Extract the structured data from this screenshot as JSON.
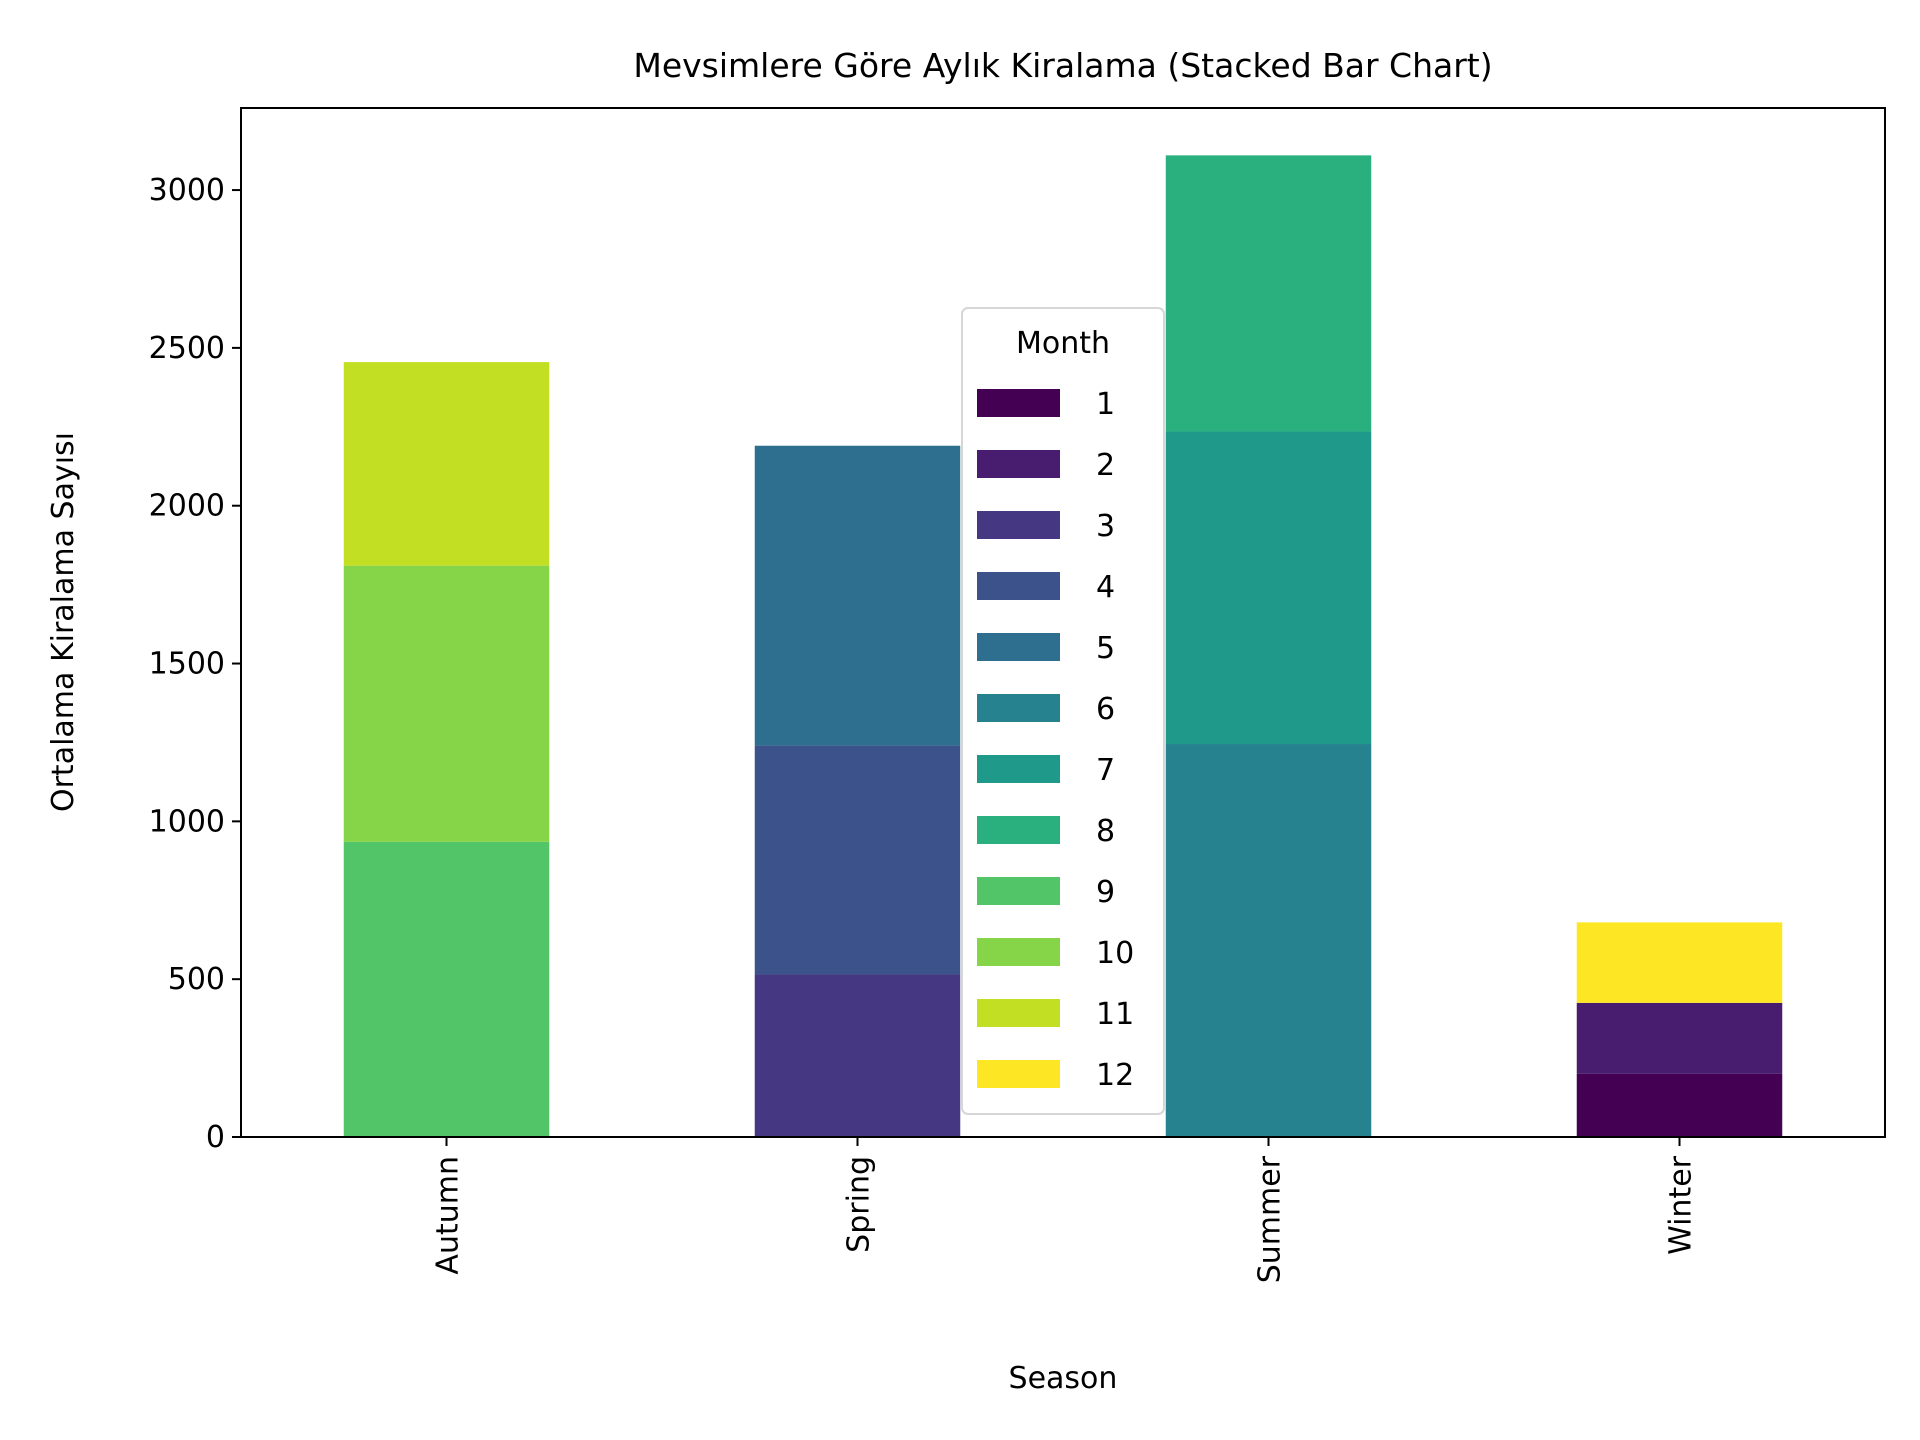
{
  "chart_data": {
    "type": "bar",
    "stacked": true,
    "title": "Mevsimlere Göre Aylık Kiralama (Stacked Bar Chart)",
    "xlabel": "Season",
    "ylabel": "Ortalama Kiralama Sayısı",
    "categories": [
      "Autumn",
      "Spring",
      "Summer",
      "Winter"
    ],
    "ylim": [
      0,
      3260
    ],
    "yticks": [
      0,
      500,
      1000,
      1500,
      2000,
      2500,
      3000
    ],
    "grid": false,
    "legend": {
      "title": "Month",
      "placement": "center"
    },
    "series": [
      {
        "name": "1",
        "color": "#440154",
        "values": [
          0,
          0,
          0,
          200
        ]
      },
      {
        "name": "2",
        "color": "#481d6f",
        "values": [
          0,
          0,
          0,
          225
        ]
      },
      {
        "name": "3",
        "color": "#453781",
        "values": [
          0,
          515,
          0,
          0
        ]
      },
      {
        "name": "4",
        "color": "#3b528b",
        "values": [
          0,
          725,
          0,
          0
        ]
      },
      {
        "name": "5",
        "color": "#2e6e8e",
        "values": [
          0,
          950,
          0,
          0
        ]
      },
      {
        "name": "6",
        "color": "#26828e",
        "values": [
          0,
          0,
          1245,
          0
        ]
      },
      {
        "name": "7",
        "color": "#1f9a8a",
        "values": [
          0,
          0,
          990,
          0
        ]
      },
      {
        "name": "8",
        "color": "#2ab07f",
        "values": [
          0,
          0,
          875,
          0
        ]
      },
      {
        "name": "9",
        "color": "#52c569",
        "values": [
          935,
          0,
          0,
          0
        ]
      },
      {
        "name": "10",
        "color": "#86d549",
        "values": [
          875,
          0,
          0,
          0
        ]
      },
      {
        "name": "11",
        "color": "#c2df23",
        "values": [
          645,
          0,
          0,
          0
        ]
      },
      {
        "name": "12",
        "color": "#fde725",
        "values": [
          0,
          0,
          0,
          255
        ]
      }
    ]
  }
}
